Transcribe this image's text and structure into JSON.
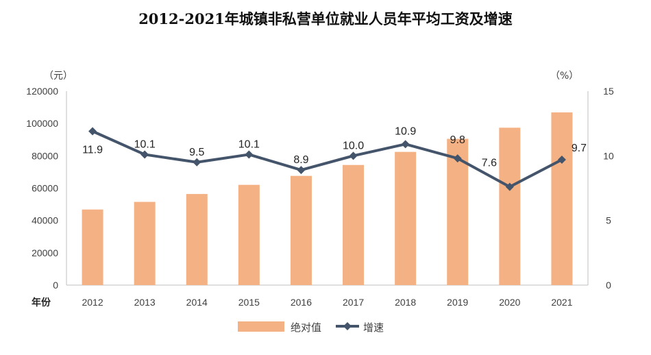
{
  "chart_data": {
    "type": "bar+line",
    "title": "2012-2021年城镇非私营单位就业人员年平均工资及增速",
    "xlabel": "年份",
    "categories": [
      "2012",
      "2013",
      "2014",
      "2015",
      "2016",
      "2017",
      "2018",
      "2019",
      "2020",
      "2021"
    ],
    "left_axis": {
      "unit": "（元）",
      "ylim": [
        0,
        120000
      ],
      "ticks": [
        "0",
        "20000",
        "40000",
        "60000",
        "80000",
        "100000",
        "120000"
      ]
    },
    "right_axis": {
      "unit": "（%）",
      "ylim": [
        0,
        15
      ],
      "ticks": [
        "0",
        "5",
        "10",
        "15"
      ]
    },
    "series": [
      {
        "name": "绝对值",
        "type": "bar",
        "axis": "left",
        "color": "#f4b183",
        "values": [
          46769,
          51483,
          56360,
          62029,
          67569,
          74318,
          82413,
          90501,
          97379,
          106837
        ]
      },
      {
        "name": "增速",
        "type": "line",
        "axis": "right",
        "color": "#44546a",
        "values": [
          11.9,
          10.1,
          9.5,
          10.1,
          8.9,
          10.0,
          10.9,
          9.8,
          7.6,
          9.7
        ],
        "labels": [
          "11.9",
          "10.1",
          "9.5",
          "10.1",
          "8.9",
          "10.0",
          "10.9",
          "9.8",
          "7.6",
          "9.7"
        ]
      }
    ],
    "legend": {
      "placement": "bottom-center",
      "items": [
        "绝对值",
        "增速"
      ]
    }
  }
}
